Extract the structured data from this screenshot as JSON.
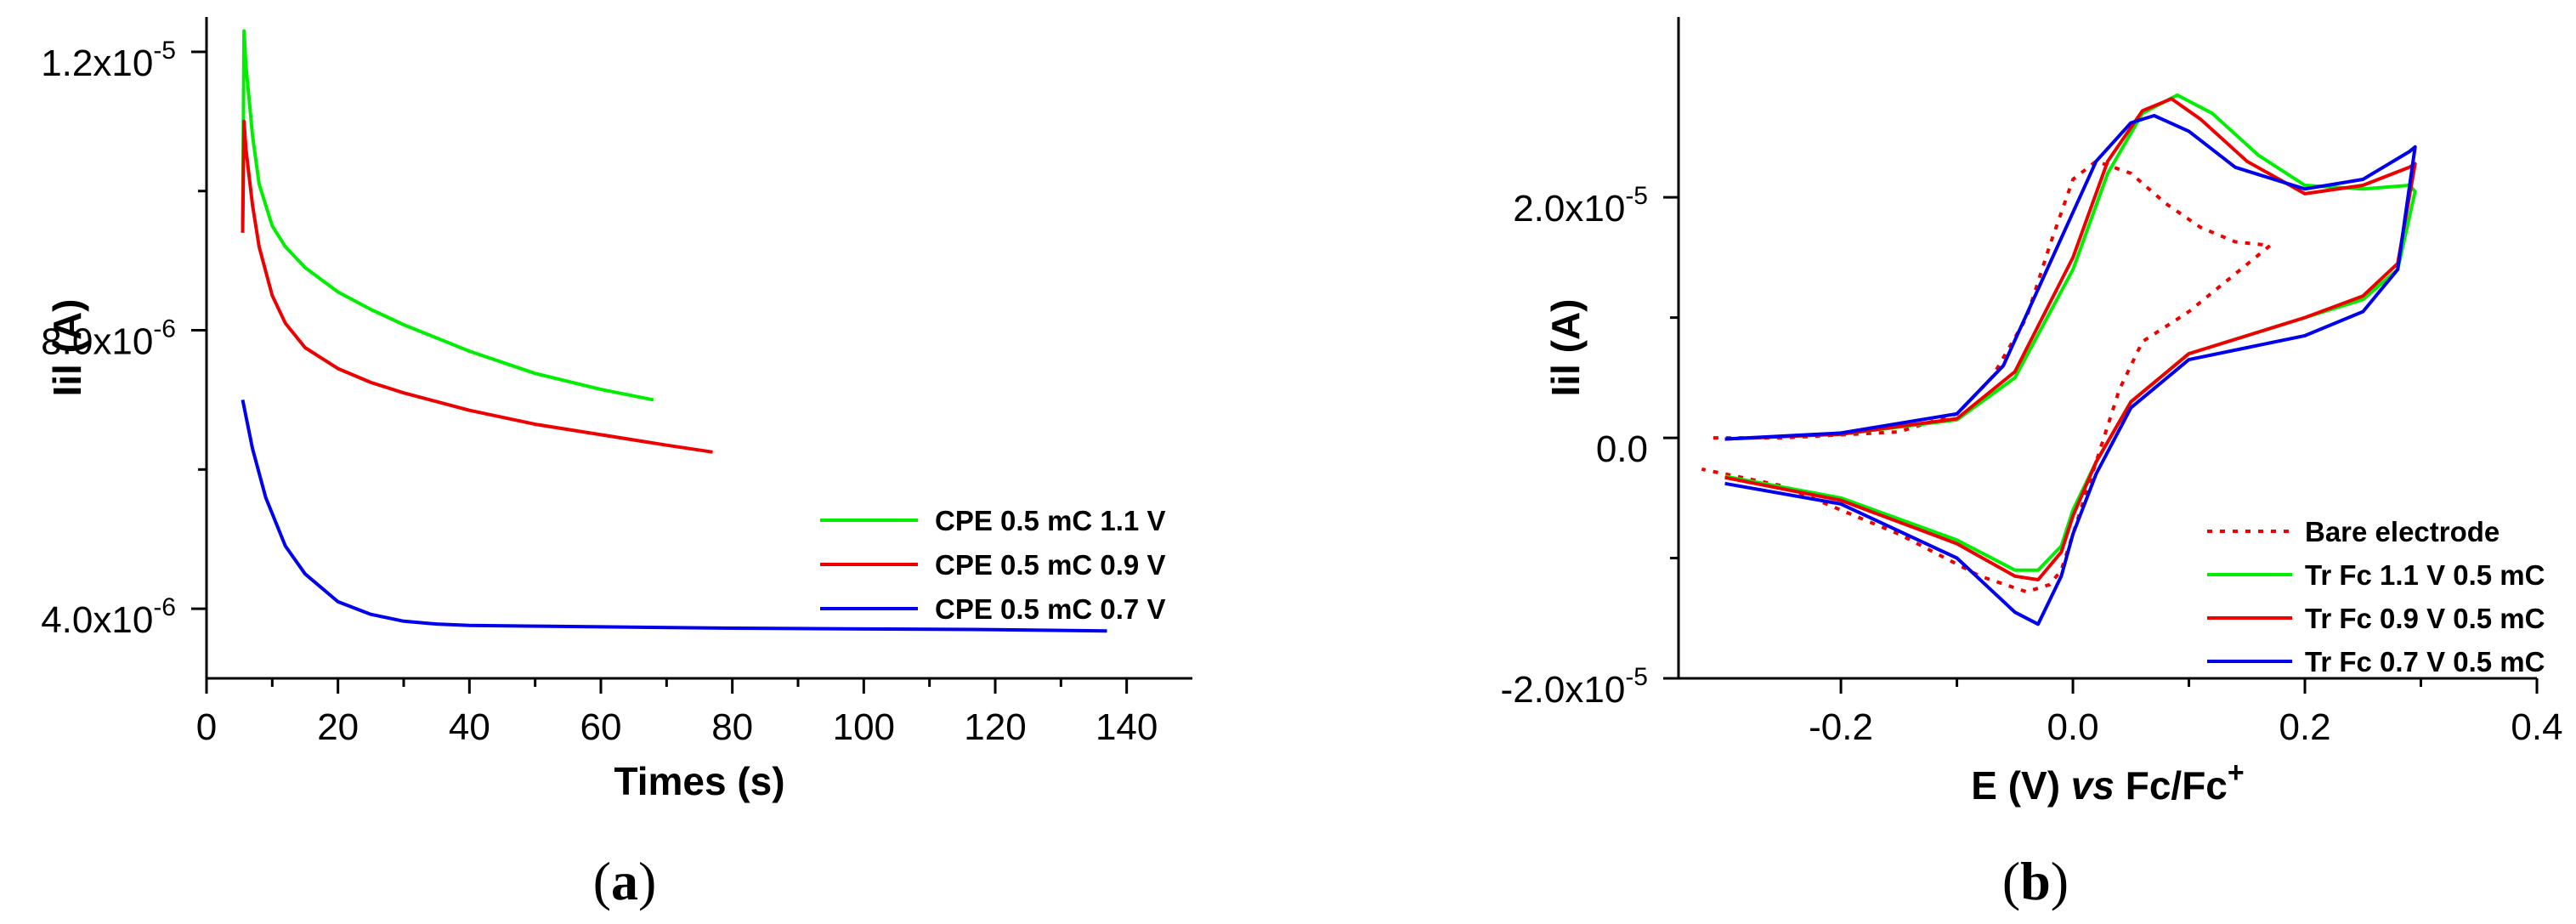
{
  "panels": {
    "a": {
      "label_open": "(",
      "label_letter": "a",
      "label_close": ")"
    },
    "b": {
      "label_open": "(",
      "label_letter": "b",
      "label_close": ")"
    }
  },
  "chart_data": [
    {
      "type": "line",
      "xlabel": "Times (s)",
      "ylabel": "Iil (A)",
      "xlim": [
        0,
        150
      ],
      "ylim": [
        3e-06,
        1.25e-05
      ],
      "xticks": [
        0,
        20,
        40,
        60,
        80,
        100,
        120,
        140
      ],
      "xtick_labels": [
        "0",
        "20",
        "40",
        "60",
        "80",
        "100",
        "120",
        "140"
      ],
      "yticks": [
        4e-06,
        8e-06,
        1.2e-05
      ],
      "ytick_mantissa": [
        "4.0x10",
        "8.0x10",
        "1.2x10"
      ],
      "ytick_exponent": [
        "-6",
        "-6",
        "-5"
      ],
      "legend_position": "bottom-right",
      "series": [
        {
          "name": "CPE 0.5 mC 1.1 V",
          "color": "#00ee00",
          "x": [
            5.5,
            5.7,
            6,
            7,
            8,
            10,
            12,
            15,
            20,
            25,
            30,
            40,
            50,
            60,
            68
          ],
          "y": [
            9.5e-06,
            1.23e-05,
            1.18e-05,
            1.08e-05,
            1.01e-05,
            9.5e-06,
            9.2e-06,
            8.9e-06,
            8.55e-06,
            8.3e-06,
            8.08e-06,
            7.7e-06,
            7.38e-06,
            7.15e-06,
            7e-06
          ]
        },
        {
          "name": "CPE 0.5 mC 0.9 V",
          "color": "#ee0000",
          "x": [
            5.5,
            5.7,
            6,
            7,
            8,
            10,
            12,
            15,
            20,
            25,
            30,
            40,
            50,
            60,
            70,
            77
          ],
          "y": [
            9.4e-06,
            1.1e-05,
            1.06e-05,
            9.8e-06,
            9.2e-06,
            8.5e-06,
            8.1e-06,
            7.75e-06,
            7.45e-06,
            7.25e-06,
            7.1e-06,
            6.85e-06,
            6.65e-06,
            6.5e-06,
            6.35e-06,
            6.25e-06
          ]
        },
        {
          "name": "CPE 0.5 mC 0.7 V",
          "color": "#0000ee",
          "x": [
            5.5,
            7,
            9,
            12,
            15,
            20,
            25,
            30,
            35,
            40,
            50,
            60,
            80,
            100,
            120,
            137
          ],
          "y": [
            7e-06,
            6.3e-06,
            5.6e-06,
            4.9e-06,
            4.5e-06,
            4.1e-06,
            3.92e-06,
            3.82e-06,
            3.78e-06,
            3.76e-06,
            3.75e-06,
            3.74e-06,
            3.72e-06,
            3.71e-06,
            3.7e-06,
            3.68e-06
          ]
        }
      ]
    },
    {
      "type": "line",
      "xlabel_main": "E (V) ",
      "xlabel_italic": "vs",
      "xlabel_tail": " Fc/Fc",
      "xlabel_sup": "+",
      "ylabel": "Iil (A)",
      "xlim": [
        -0.34,
        0.4
      ],
      "ylim": [
        -2e-05,
        3.5e-05
      ],
      "xticks": [
        -0.2,
        0.0,
        0.2,
        0.4
      ],
      "xtick_labels": [
        "-0.2",
        "0.0",
        "0.2",
        "0.4"
      ],
      "yticks": [
        -2e-05,
        0,
        2e-05
      ],
      "ytick_mantissa": [
        "-2.0x10",
        "0.0",
        "2.0x10"
      ],
      "ytick_exponent": [
        "-5",
        "",
        "-5"
      ],
      "legend_position": "bottom-right",
      "series": [
        {
          "name": "Bare electrode",
          "color": "#ee0000",
          "dashed": true,
          "x": [
            -0.31,
            -0.25,
            -0.15,
            -0.1,
            -0.07,
            -0.04,
            -0.02,
            0.0,
            0.02,
            0.05,
            0.08,
            0.11,
            0.14,
            0.17,
            0.1,
            0.06,
            0.04,
            0.02,
            0.0,
            -0.01,
            -0.02,
            -0.04,
            -0.08,
            -0.15,
            -0.25,
            -0.32
          ],
          "y": [
            0.0,
            0.0,
            5e-07,
            2e-06,
            5e-06,
            1e-05,
            1.6e-05,
            2.15e-05,
            2.3e-05,
            2.2e-05,
            1.95e-05,
            1.75e-05,
            1.63e-05,
            1.6e-05,
            1.05e-05,
            8e-06,
            4e-06,
            -2e-06,
            -8e-06,
            -1.1e-05,
            -1.22e-05,
            -1.28e-05,
            -1.15e-05,
            -8e-06,
            -4e-06,
            -2.6e-06
          ]
        },
        {
          "name": "Tr Fc 1.1 V 0.5 mC",
          "color": "#00ee00",
          "x": [
            -0.3,
            -0.2,
            -0.1,
            -0.05,
            0.0,
            0.03,
            0.06,
            0.09,
            0.12,
            0.16,
            0.2,
            0.25,
            0.29,
            0.295,
            0.28,
            0.25,
            0.2,
            0.15,
            0.1,
            0.05,
            0.02,
            0.0,
            -0.01,
            -0.03,
            -0.05,
            -0.1,
            -0.2,
            -0.3
          ],
          "y": [
            -1e-07,
            3e-07,
            1.5e-06,
            5e-06,
            1.4e-05,
            2.2e-05,
            2.7e-05,
            2.85e-05,
            2.7e-05,
            2.35e-05,
            2.1e-05,
            2.07e-05,
            2.1e-05,
            2.05e-05,
            1.4e-05,
            1.15e-05,
            1e-05,
            8.5e-06,
            7e-06,
            3e-06,
            -2e-06,
            -6e-06,
            -9e-06,
            -1.1e-05,
            -1.1e-05,
            -8.5e-06,
            -5e-06,
            -3.2e-06
          ]
        },
        {
          "name": "Tr Fc 0.9 V 0.5 mC",
          "color": "#ee0000",
          "x": [
            -0.3,
            -0.2,
            -0.1,
            -0.05,
            0.0,
            0.03,
            0.06,
            0.085,
            0.11,
            0.15,
            0.2,
            0.25,
            0.29,
            0.295,
            0.28,
            0.25,
            0.2,
            0.15,
            0.1,
            0.05,
            0.02,
            0.0,
            -0.01,
            -0.03,
            -0.05,
            -0.1,
            -0.2,
            -0.3
          ],
          "y": [
            -1e-07,
            3e-07,
            1.6e-06,
            5.5e-06,
            1.5e-05,
            2.3e-05,
            2.72e-05,
            2.82e-05,
            2.65e-05,
            2.3e-05,
            2.03e-05,
            2.1e-05,
            2.25e-05,
            2.28e-05,
            1.45e-05,
            1.18e-05,
            1e-05,
            8.5e-06,
            7e-06,
            3e-06,
            -2e-06,
            -6.5e-06,
            -9.5e-06,
            -1.18e-05,
            -1.15e-05,
            -8.8e-06,
            -5.2e-06,
            -3.3e-06
          ]
        },
        {
          "name": "Tr Fc 0.7 V 0.5 mC",
          "color": "#0000ee",
          "x": [
            -0.3,
            -0.2,
            -0.1,
            -0.06,
            -0.02,
            0.02,
            0.05,
            0.07,
            0.1,
            0.14,
            0.2,
            0.25,
            0.29,
            0.295,
            0.28,
            0.25,
            0.2,
            0.15,
            0.1,
            0.05,
            0.02,
            0.0,
            -0.01,
            -0.03,
            -0.05,
            -0.1,
            -0.2,
            -0.3
          ],
          "y": [
            -1e-07,
            4e-07,
            2e-06,
            6e-06,
            1.45e-05,
            2.3e-05,
            2.62e-05,
            2.68e-05,
            2.55e-05,
            2.25e-05,
            2.07e-05,
            2.15e-05,
            2.38e-05,
            2.42e-05,
            1.4e-05,
            1.05e-05,
            8.5e-06,
            7.5e-06,
            6.5e-06,
            2.5e-06,
            -3e-06,
            -8e-06,
            -1.15e-05,
            -1.55e-05,
            -1.45e-05,
            -1e-05,
            -5.5e-06,
            -3.8e-06
          ]
        }
      ]
    }
  ]
}
